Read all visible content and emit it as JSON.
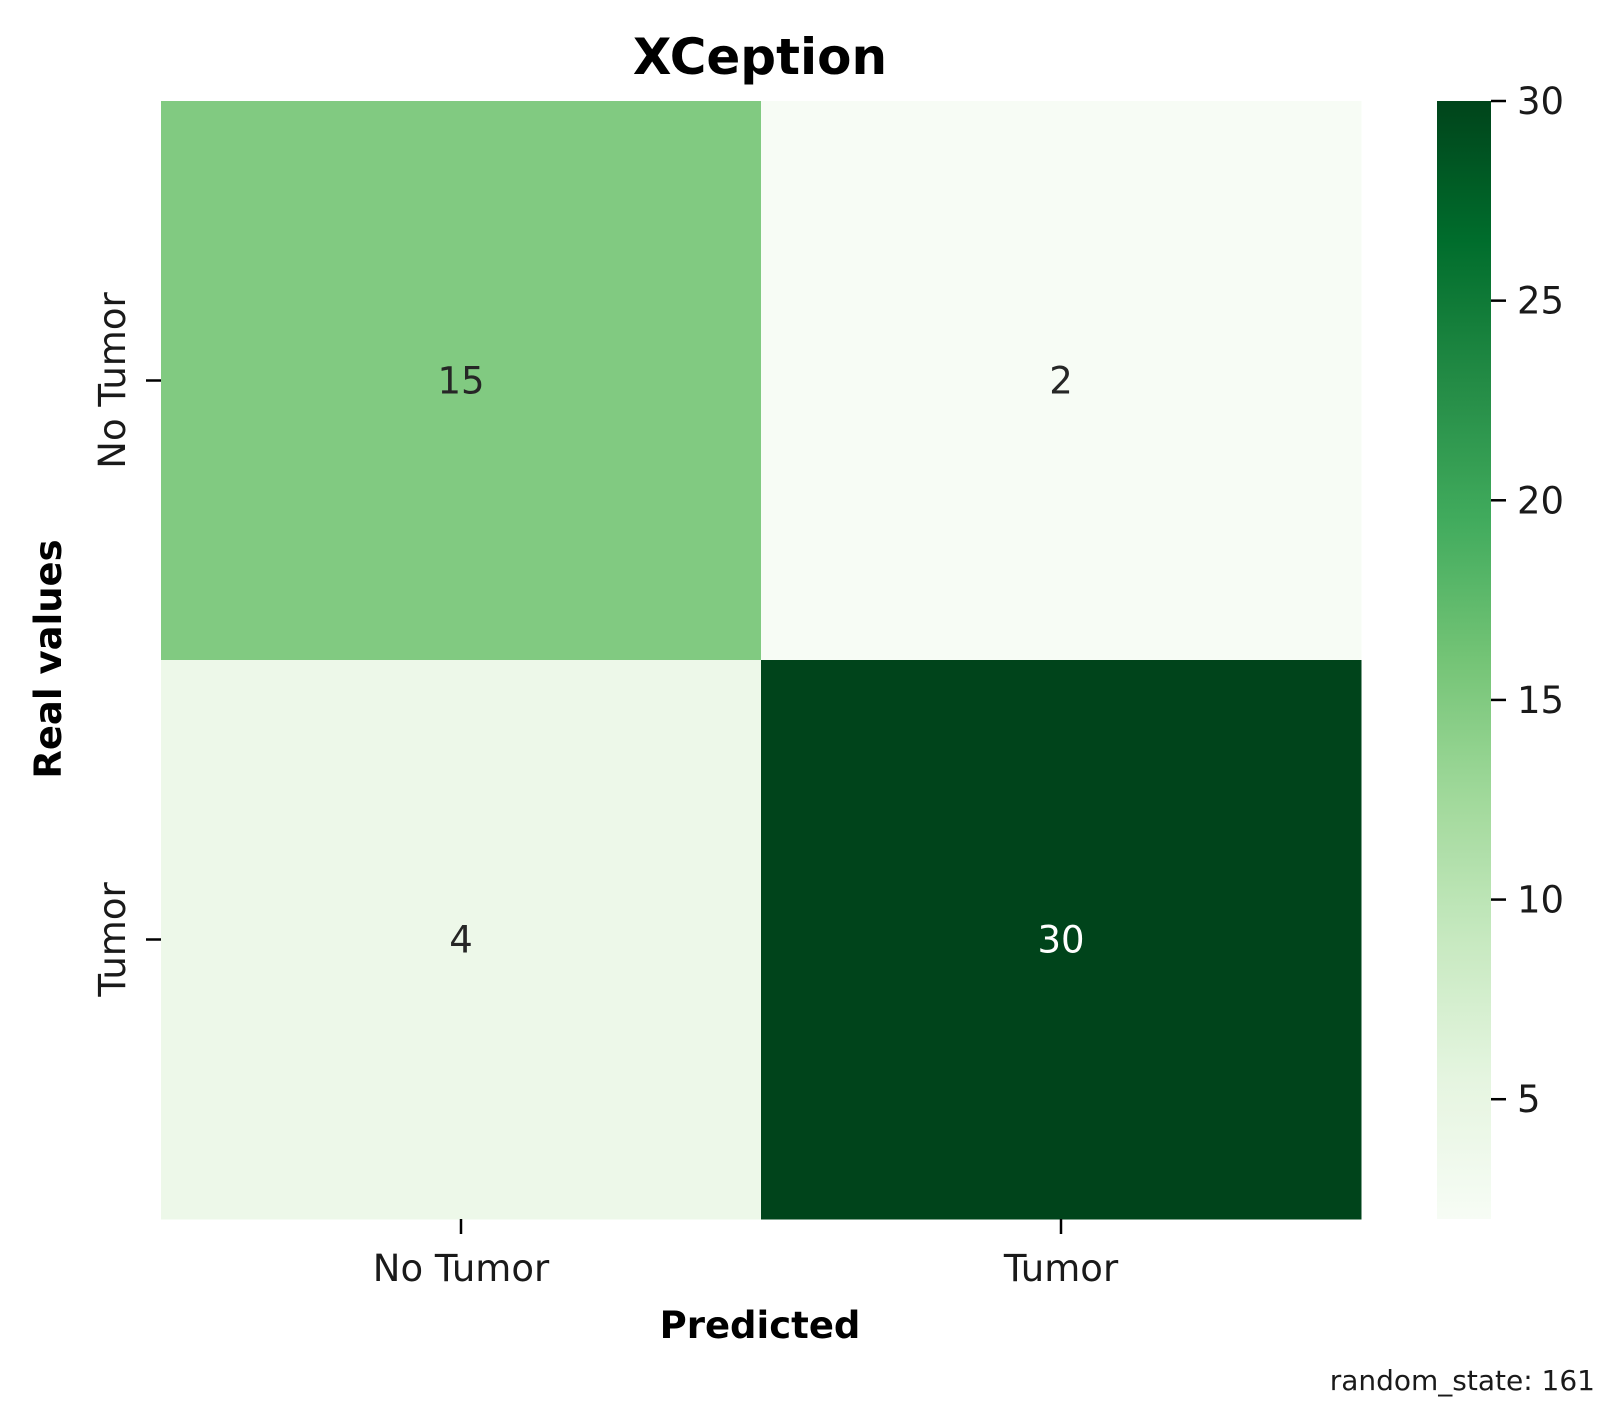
{
  "chart_data": {
    "type": "heatmap",
    "title": "XCeption",
    "xlabel": "Predicted",
    "ylabel": "Real values",
    "x_categories": [
      "No Tumor",
      "Tumor"
    ],
    "y_categories": [
      "No Tumor",
      "Tumor"
    ],
    "values": [
      [
        15,
        2
      ],
      [
        4,
        30
      ]
    ],
    "colormap": "Greens",
    "colorbar": {
      "min": 2,
      "max": 30,
      "ticks": [
        5,
        10,
        15,
        20,
        25,
        30
      ]
    },
    "legend": "colorbar-right",
    "grid": false,
    "annotation": "random_state: 161"
  },
  "colors": {
    "cmap_stops": [
      "#f7fcf5",
      "#e5f5e0",
      "#c7e9c0",
      "#a1d99b",
      "#74c476",
      "#41ab5d",
      "#238b45",
      "#006d2c",
      "#00441b"
    ],
    "light_text": "#ffffff",
    "dark_text": "#262626"
  }
}
